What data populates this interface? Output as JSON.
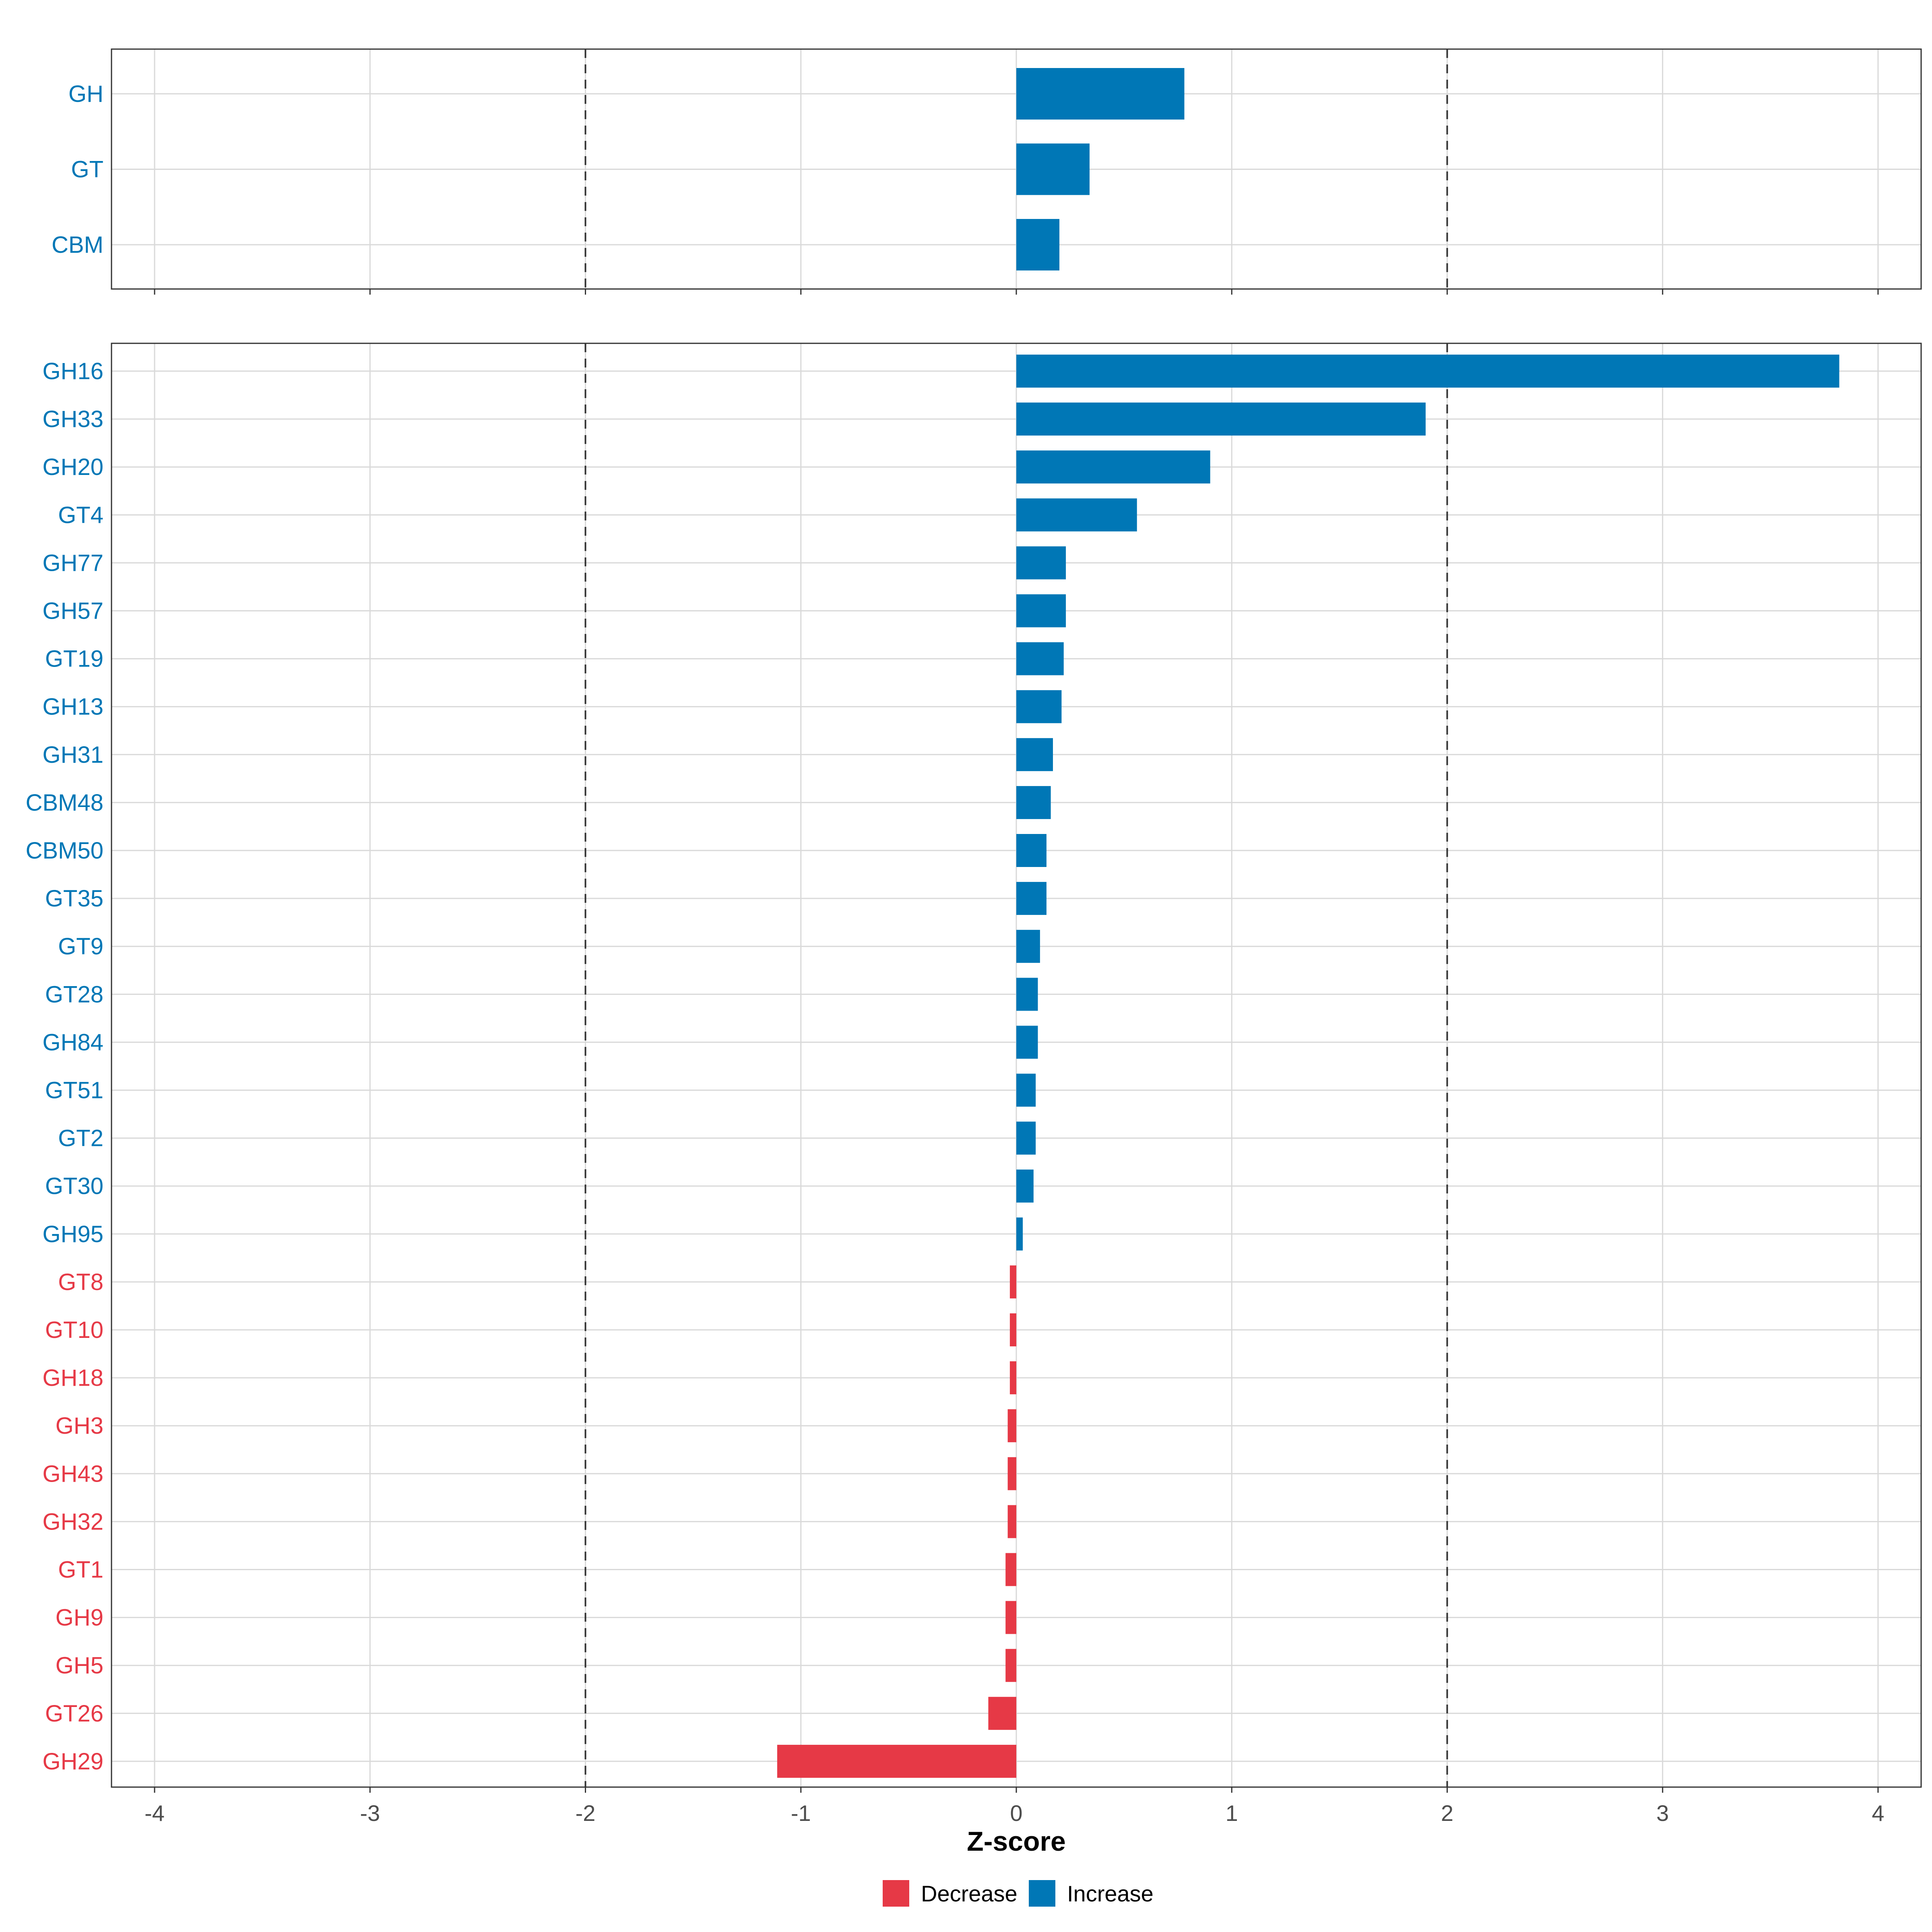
{
  "chart_data": {
    "type": "bar",
    "orientation": "horizontal",
    "xlabel": "Z-score",
    "xlim": [
      -4.2,
      4.2
    ],
    "x_ticks": [
      "-4",
      "-3",
      "-2",
      "-1",
      "0",
      "1",
      "2",
      "3",
      "4"
    ],
    "x_tick_values": [
      -4,
      -3,
      -2,
      -1,
      0,
      1,
      2,
      3,
      4
    ],
    "reference_lines": [
      -2,
      2
    ],
    "grid": true,
    "colors": {
      "Decrease": "#e63946",
      "Increase": "#0077b6"
    },
    "legend": {
      "position": "bottom",
      "entries": [
        {
          "label": "Decrease",
          "key": "Decrease"
        },
        {
          "label": "Increase",
          "key": "Increase"
        }
      ]
    },
    "panels": [
      {
        "name": "class",
        "categories": [
          "GH",
          "GT",
          "CBM"
        ],
        "values": [
          0.78,
          0.34,
          0.2
        ]
      },
      {
        "name": "family",
        "categories": [
          "GH16",
          "GH33",
          "GH20",
          "GT4",
          "GH77",
          "GH57",
          "GT19",
          "GH13",
          "GH31",
          "CBM48",
          "CBM50",
          "GT35",
          "GT9",
          "GT28",
          "GH84",
          "GT51",
          "GT2",
          "GT30",
          "GH95",
          "GT8",
          "GT10",
          "GH18",
          "GH3",
          "GH43",
          "GH32",
          "GT1",
          "GH9",
          "GH5",
          "GT26",
          "GH29"
        ],
        "values": [
          3.82,
          1.9,
          0.9,
          0.56,
          0.23,
          0.23,
          0.22,
          0.21,
          0.17,
          0.16,
          0.14,
          0.14,
          0.11,
          0.1,
          0.1,
          0.09,
          0.09,
          0.08,
          0.03,
          -0.03,
          -0.03,
          -0.03,
          -0.04,
          -0.04,
          -0.04,
          -0.05,
          -0.05,
          -0.05,
          -0.13,
          -1.11
        ]
      }
    ]
  }
}
